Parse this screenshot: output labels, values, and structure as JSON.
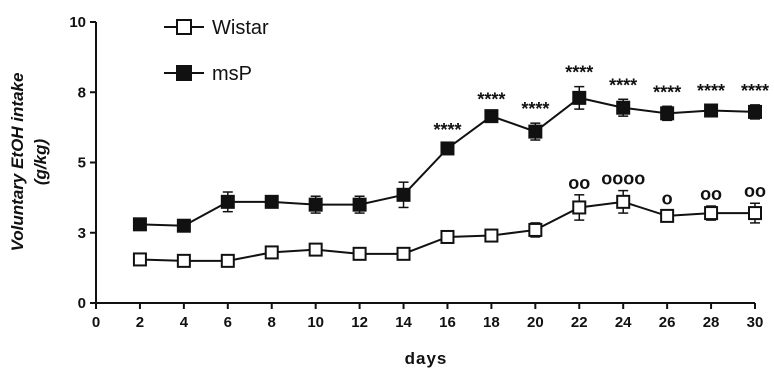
{
  "chart_data": {
    "type": "line",
    "title": "",
    "xlabel": "days",
    "ylabel": "Voluntary EtOH intake",
    "ylabel_unit": "(g/kg)",
    "xlim": [
      0,
      30
    ],
    "ylim": [
      0,
      10
    ],
    "x_ticks": [
      "0",
      "2",
      "4",
      "6",
      "8",
      "10",
      "12",
      "14",
      "16",
      "18",
      "20",
      "22",
      "24",
      "26",
      "28",
      "30"
    ],
    "y_ticks": [
      "0",
      "3",
      "5",
      "8",
      "10"
    ],
    "y_tick_values": [
      0,
      2.5,
      5,
      7.5,
      10
    ],
    "legend_position": "top-left",
    "x": [
      2,
      4,
      6,
      8,
      10,
      12,
      14,
      16,
      18,
      20,
      22,
      24,
      26,
      28,
      30
    ],
    "series": [
      {
        "name": "Wistar",
        "marker": "open-square",
        "color": "#111111",
        "values": [
          1.55,
          1.5,
          1.5,
          1.8,
          1.9,
          1.75,
          1.75,
          2.35,
          2.4,
          2.6,
          3.4,
          3.6,
          3.1,
          3.2,
          3.2
        ],
        "errors": [
          0.1,
          0.1,
          0.1,
          0.1,
          0.15,
          0.1,
          0.1,
          0.2,
          0.2,
          0.25,
          0.45,
          0.4,
          0.2,
          0.25,
          0.35
        ],
        "annotations": [
          "",
          "",
          "",
          "",
          "",
          "",
          "",
          "",
          "",
          "",
          "oo",
          "oooo",
          "o",
          "oo",
          "oo"
        ]
      },
      {
        "name": "msP",
        "marker": "filled-square",
        "color": "#111111",
        "values": [
          2.8,
          2.75,
          3.6,
          3.6,
          3.5,
          3.5,
          3.85,
          5.5,
          6.65,
          6.1,
          7.3,
          6.95,
          6.75,
          6.85,
          6.8
        ],
        "errors": [
          0.1,
          0.1,
          0.35,
          0.15,
          0.3,
          0.3,
          0.45,
          0.15,
          0.1,
          0.3,
          0.4,
          0.3,
          0.25,
          0.2,
          0.25
        ],
        "annotations": [
          "",
          "",
          "",
          "",
          "",
          "",
          "",
          "****",
          "****",
          "****",
          "****",
          "****",
          "****",
          "****",
          "****"
        ]
      }
    ]
  }
}
